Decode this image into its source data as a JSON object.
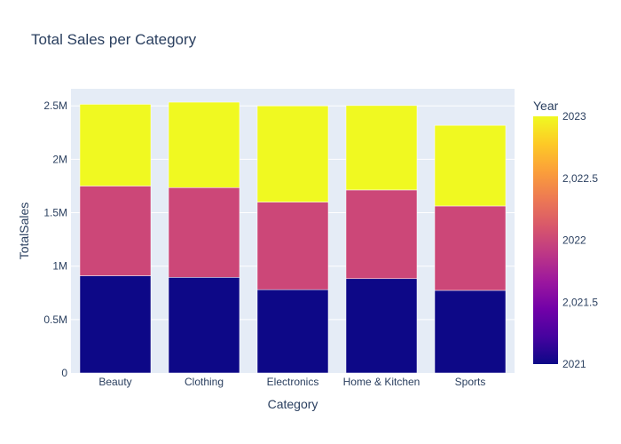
{
  "chart_data": {
    "type": "bar",
    "barmode": "stack",
    "title": "Total Sales per Category",
    "xlabel": "Category",
    "ylabel": "TotalSales",
    "categories": [
      "Beauty",
      "Clothing",
      "Electronics",
      "Home & Kitchen",
      "Sports"
    ],
    "series": [
      {
        "name": "2021",
        "color": "#0d0887",
        "values": [
          910000,
          895000,
          780000,
          883000,
          773000
        ]
      },
      {
        "name": "2022",
        "color": "#cc4778",
        "values": [
          840000,
          840000,
          820000,
          830000,
          790000
        ]
      },
      {
        "name": "2023",
        "color": "#f0f921",
        "values": [
          765000,
          800000,
          900000,
          790000,
          755000
        ]
      }
    ],
    "ylim": [
      0,
      2660000
    ],
    "yticks": [
      0,
      500000,
      1000000,
      1500000,
      2000000,
      2500000
    ],
    "ytick_labels": [
      "0",
      "0.5M",
      "1M",
      "1.5M",
      "2M",
      "2.5M"
    ],
    "grid": true,
    "plot_bgcolor": "#e5ecf6",
    "colorbar": {
      "title": "Year",
      "range": [
        2021,
        2023
      ],
      "ticks": [
        2021,
        2021.5,
        2022,
        2022.5,
        2023
      ],
      "tick_labels": [
        "2021",
        "2,021.5",
        "2022",
        "2,022.5",
        "2023"
      ],
      "colorscale": [
        "#0d0887",
        "#46039f",
        "#7201a8",
        "#9c179e",
        "#bd3786",
        "#d8576b",
        "#ed7953",
        "#fb9f3a",
        "#fdca26",
        "#f0f921"
      ]
    }
  }
}
